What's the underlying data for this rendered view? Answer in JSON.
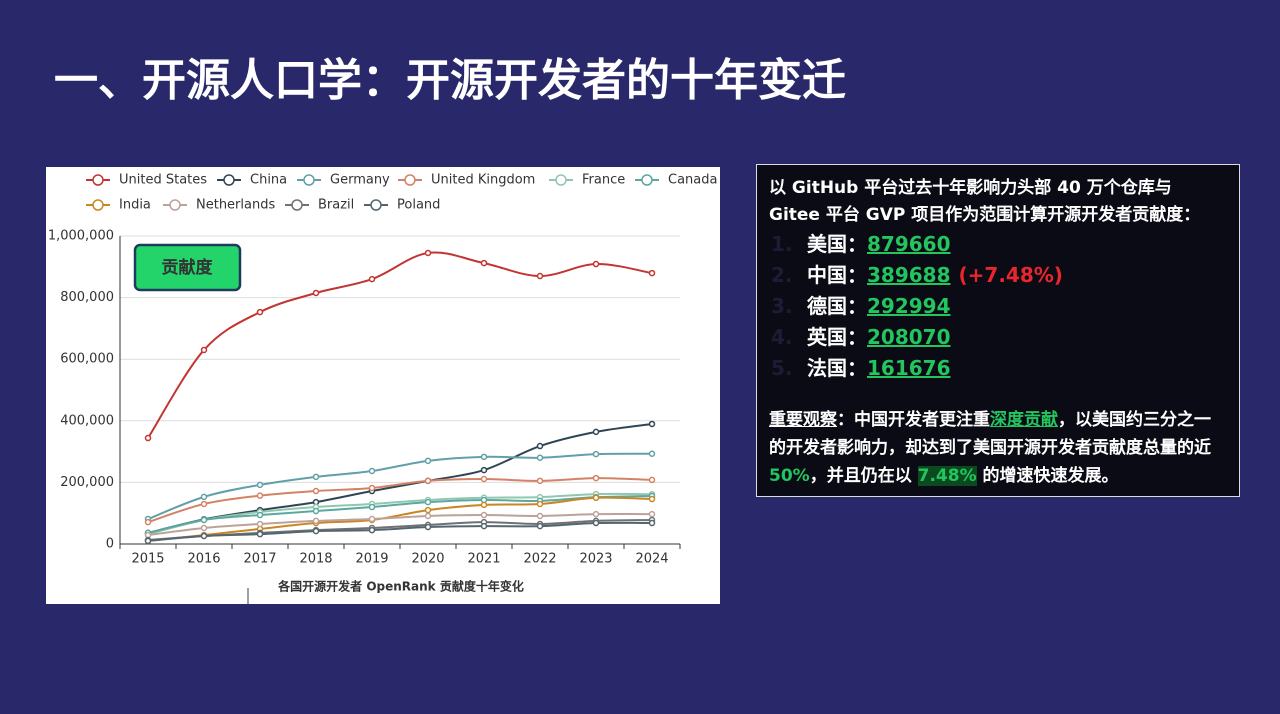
{
  "slide_title": "一、开源人口学：开源开发者的十年变迁",
  "chart_data": {
    "type": "line",
    "badge": "贡献度",
    "caption": "各国开源开发者 OpenRank 贡献度十年变化",
    "categories": [
      "2015",
      "2016",
      "2017",
      "2018",
      "2019",
      "2020",
      "2021",
      "2022",
      "2023",
      "2024"
    ],
    "ylim": [
      0,
      1000000
    ],
    "yticks": [
      0,
      {
        "value": 200000,
        "label": "200,000"
      },
      {
        "value": 400000,
        "label": "400,000"
      },
      {
        "value": 600000,
        "label": "600,000"
      },
      {
        "value": 800000,
        "label": "800,000"
      },
      {
        "value": 1000000,
        "label": "1,000,000"
      }
    ],
    "grid": true,
    "series": [
      {
        "name": "United States",
        "color": "#c23531",
        "values": [
          344000,
          630000,
          753000,
          815000,
          860000,
          945000,
          912000,
          870000,
          909000,
          879660
        ]
      },
      {
        "name": "China",
        "color": "#2f4554",
        "values": [
          36000,
          80000,
          110000,
          136000,
          172000,
          205000,
          240000,
          318000,
          364000,
          389688
        ]
      },
      {
        "name": "Germany",
        "color": "#61a0a8",
        "values": [
          81000,
          153000,
          192000,
          218000,
          237000,
          270000,
          283000,
          280000,
          292000,
          292994
        ]
      },
      {
        "name": "United Kingdom",
        "color": "#d48265",
        "values": [
          71000,
          130000,
          157000,
          172000,
          182000,
          205000,
          211000,
          205000,
          214000,
          208070
        ]
      },
      {
        "name": "France",
        "color": "#91c7ae",
        "values": [
          32000,
          78000,
          104000,
          120000,
          130000,
          143000,
          150000,
          152000,
          162000,
          161676
        ]
      },
      {
        "name": "Canada",
        "color": "#5ba8a0",
        "values": [
          36000,
          78000,
          94000,
          107000,
          120000,
          136000,
          143000,
          140000,
          152000,
          156000
        ]
      },
      {
        "name": "India",
        "color": "#ca8622",
        "values": [
          10000,
          29000,
          49000,
          68000,
          78000,
          110000,
          127000,
          130000,
          150000,
          146000
        ]
      },
      {
        "name": "Netherlands",
        "color": "#bda29a",
        "values": [
          29000,
          52000,
          65000,
          75000,
          81000,
          91000,
          94000,
          91000,
          97000,
          97000
        ]
      },
      {
        "name": "Brazil",
        "color": "#6e7074",
        "values": [
          13000,
          26000,
          36000,
          45000,
          52000,
          62000,
          71000,
          65000,
          75000,
          78000
        ]
      },
      {
        "name": "Poland",
        "color": "#546570",
        "values": [
          10000,
          26000,
          32000,
          42000,
          45000,
          55000,
          58000,
          58000,
          68000,
          68000
        ]
      }
    ]
  },
  "panel": {
    "intro": [
      "以 GitHub 平台过去十年影响力头部 40 万个仓库与",
      "Gitee 平台 GVP 项目作为范围计算开源开发者贡献度："
    ],
    "items": [
      {
        "rank": "1.",
        "country": "美国：",
        "value": 879660
      },
      {
        "rank": "2.",
        "country": "中国：",
        "value": 389688,
        "change": "(+7.48%)"
      },
      {
        "rank": "3.",
        "country": "德国：",
        "value": 292994
      },
      {
        "rank": "4.",
        "country": "英国：",
        "value": 208070
      },
      {
        "rank": "5.",
        "country": "法国：",
        "value": 161676
      }
    ],
    "observation": [
      "重要观察",
      "：中国开发者更注重",
      "深度贡献",
      "，以美国约三分之一的开发者影响力，却达到了美国开源开发者贡献度总量的近 ",
      "50%",
      "，并且仍在以 ",
      "7.48%",
      " 的增速快速发展。"
    ]
  }
}
